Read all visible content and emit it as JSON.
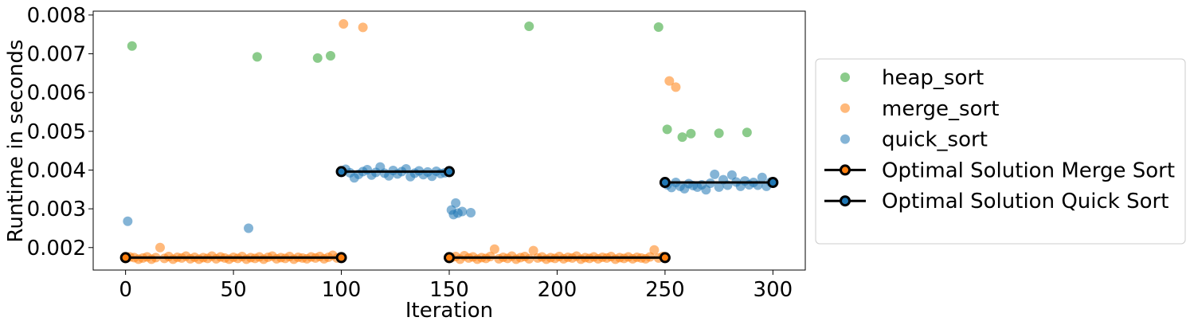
{
  "chart_data": {
    "type": "scatter",
    "title": "",
    "xlabel": "Iteration",
    "ylabel": "Runtime in seconds",
    "xlim": [
      -15,
      315
    ],
    "ylim": [
      0.00142,
      0.0081
    ],
    "x_ticks": [
      0,
      50,
      100,
      150,
      200,
      250,
      300
    ],
    "x_tick_labels": [
      "0",
      "50",
      "100",
      "150",
      "200",
      "250",
      "300"
    ],
    "y_ticks": [
      0.002,
      0.003,
      0.004,
      0.005,
      0.006,
      0.007,
      0.008
    ],
    "y_tick_labels": [
      "0.002",
      "0.003",
      "0.004",
      "0.005",
      "0.006",
      "0.007",
      "0.008"
    ],
    "grid": false,
    "legend_position": "right, outside plot",
    "legend": [
      {
        "label": "heap_sort",
        "kind": "marker",
        "color": "#2ca02c"
      },
      {
        "label": "merge_sort",
        "kind": "marker",
        "color": "#ff7f0e"
      },
      {
        "label": "quick_sort",
        "kind": "marker",
        "color": "#1f77b4"
      },
      {
        "label": "Optimal Solution Merge Sort",
        "kind": "line-marker",
        "color": "#000000",
        "marker_color": "#ff7f0e"
      },
      {
        "label": "Optimal Solution Quick Sort",
        "kind": "line-marker",
        "color": "#000000",
        "marker_color": "#1f77b4"
      }
    ],
    "series": [
      {
        "name": "heap_sort",
        "color": "#2ca02c",
        "points": [
          [
            3,
            0.0072
          ],
          [
            61,
            0.00692
          ],
          [
            89,
            0.00689
          ],
          [
            95,
            0.00695
          ],
          [
            187,
            0.00771
          ],
          [
            247,
            0.00769
          ],
          [
            251,
            0.00505
          ],
          [
            258,
            0.00485
          ],
          [
            262,
            0.00494
          ],
          [
            275,
            0.00495
          ],
          [
            288,
            0.00497
          ]
        ]
      },
      {
        "name": "merge_sort",
        "color": "#ff7f0e",
        "points": [
          [
            0,
            0.00172
          ],
          [
            2,
            0.00176
          ],
          [
            4,
            0.00174
          ],
          [
            6,
            0.0017
          ],
          [
            8,
            0.00173
          ],
          [
            10,
            0.00176
          ],
          [
            12,
            0.0017
          ],
          [
            14,
            0.00174
          ],
          [
            16,
            0.002
          ],
          [
            18,
            0.00172
          ],
          [
            20,
            0.00177
          ],
          [
            22,
            0.0017
          ],
          [
            24,
            0.00175
          ],
          [
            26,
            0.00173
          ],
          [
            28,
            0.00178
          ],
          [
            30,
            0.00171
          ],
          [
            32,
            0.00175
          ],
          [
            34,
            0.0017
          ],
          [
            36,
            0.00174
          ],
          [
            38,
            0.00172
          ],
          [
            40,
            0.00178
          ],
          [
            42,
            0.00171
          ],
          [
            44,
            0.00176
          ],
          [
            46,
            0.00173
          ],
          [
            48,
            0.0017
          ],
          [
            50,
            0.00175
          ],
          [
            52,
            0.00172
          ],
          [
            54,
            0.00177
          ],
          [
            56,
            0.0017
          ],
          [
            58,
            0.00174
          ],
          [
            60,
            0.00172
          ],
          [
            62,
            0.00176
          ],
          [
            64,
            0.0017
          ],
          [
            66,
            0.00175
          ],
          [
            68,
            0.00178
          ],
          [
            70,
            0.00171
          ],
          [
            72,
            0.00174
          ],
          [
            74,
            0.00172
          ],
          [
            76,
            0.00177
          ],
          [
            78,
            0.0017
          ],
          [
            80,
            0.00175
          ],
          [
            82,
            0.00173
          ],
          [
            84,
            0.00171
          ],
          [
            86,
            0.00176
          ],
          [
            88,
            0.00173
          ],
          [
            90,
            0.00177
          ],
          [
            92,
            0.00171
          ],
          [
            94,
            0.00175
          ],
          [
            96,
            0.0018
          ],
          [
            98,
            0.00173
          ],
          [
            101,
            0.00777
          ],
          [
            110,
            0.00768
          ],
          [
            151,
            0.00174
          ],
          [
            153,
            0.00177
          ],
          [
            155,
            0.0017
          ],
          [
            157,
            0.00179
          ],
          [
            159,
            0.00173
          ],
          [
            161,
            0.00176
          ],
          [
            163,
            0.0017
          ],
          [
            165,
            0.00174
          ],
          [
            167,
            0.00172
          ],
          [
            169,
            0.00177
          ],
          [
            171,
            0.00196
          ],
          [
            173,
            0.00171
          ],
          [
            175,
            0.00175
          ],
          [
            177,
            0.00172
          ],
          [
            179,
            0.00178
          ],
          [
            181,
            0.0017
          ],
          [
            183,
            0.00174
          ],
          [
            185,
            0.00177
          ],
          [
            187,
            0.00171
          ],
          [
            189,
            0.00192
          ],
          [
            191,
            0.00173
          ],
          [
            193,
            0.00176
          ],
          [
            195,
            0.0017
          ],
          [
            197,
            0.00174
          ],
          [
            199,
            0.00172
          ],
          [
            201,
            0.00177
          ],
          [
            203,
            0.00171
          ],
          [
            205,
            0.00175
          ],
          [
            207,
            0.00173
          ],
          [
            209,
            0.00178
          ],
          [
            211,
            0.0017
          ],
          [
            213,
            0.00174
          ],
          [
            215,
            0.00172
          ],
          [
            217,
            0.00176
          ],
          [
            219,
            0.00171
          ],
          [
            221,
            0.00175
          ],
          [
            223,
            0.00173
          ],
          [
            225,
            0.00177
          ],
          [
            227,
            0.0017
          ],
          [
            229,
            0.00174
          ],
          [
            231,
            0.00172
          ],
          [
            233,
            0.00176
          ],
          [
            235,
            0.00171
          ],
          [
            237,
            0.00175
          ],
          [
            239,
            0.00173
          ],
          [
            241,
            0.00171
          ],
          [
            243,
            0.00176
          ],
          [
            245,
            0.00194
          ],
          [
            247,
            0.00173
          ],
          [
            249,
            0.00177
          ],
          [
            252,
            0.0063
          ],
          [
            255,
            0.00614
          ]
        ]
      },
      {
        "name": "quick_sort",
        "color": "#1f77b4",
        "points": [
          [
            1,
            0.00268
          ],
          [
            57,
            0.0025
          ],
          [
            100,
            0.00398
          ],
          [
            102,
            0.00402
          ],
          [
            104,
            0.00393
          ],
          [
            106,
            0.0038
          ],
          [
            108,
            0.00389
          ],
          [
            110,
            0.00396
          ],
          [
            112,
            0.00401
          ],
          [
            114,
            0.00387
          ],
          [
            116,
            0.00394
          ],
          [
            118,
            0.00408
          ],
          [
            120,
            0.00392
          ],
          [
            122,
            0.00385
          ],
          [
            124,
            0.00399
          ],
          [
            126,
            0.0039
          ],
          [
            128,
            0.00396
          ],
          [
            130,
            0.00403
          ],
          [
            132,
            0.00383
          ],
          [
            134,
            0.00392
          ],
          [
            136,
            0.00398
          ],
          [
            138,
            0.00388
          ],
          [
            140,
            0.00395
          ],
          [
            142,
            0.00384
          ],
          [
            144,
            0.00397
          ],
          [
            146,
            0.00391
          ],
          [
            148,
            0.00393
          ],
          [
            151,
            0.00297
          ],
          [
            152,
            0.00285
          ],
          [
            153,
            0.00315
          ],
          [
            154,
            0.00289
          ],
          [
            156,
            0.00293
          ],
          [
            160,
            0.0029
          ],
          [
            251,
            0.00362
          ],
          [
            253,
            0.00355
          ],
          [
            255,
            0.00368
          ],
          [
            257,
            0.00358
          ],
          [
            259,
            0.00352
          ],
          [
            261,
            0.00365
          ],
          [
            263,
            0.0036
          ],
          [
            265,
            0.00356
          ],
          [
            267,
            0.00362
          ],
          [
            269,
            0.00349
          ],
          [
            271,
            0.00366
          ],
          [
            273,
            0.00389
          ],
          [
            275,
            0.00356
          ],
          [
            277,
            0.00375
          ],
          [
            279,
            0.00361
          ],
          [
            281,
            0.00387
          ],
          [
            283,
            0.00369
          ],
          [
            285,
            0.00358
          ],
          [
            287,
            0.00372
          ],
          [
            289,
            0.00362
          ],
          [
            291,
            0.00368
          ],
          [
            293,
            0.00361
          ],
          [
            295,
            0.00381
          ],
          [
            297,
            0.00358
          ],
          [
            299,
            0.00369
          ]
        ]
      }
    ],
    "optimal_segments": [
      {
        "series": "Optimal Solution Merge Sort",
        "x": [
          0,
          100
        ],
        "y": 0.00174,
        "marker_color": "#ff7f0e"
      },
      {
        "series": "Optimal Solution Quick Sort",
        "x": [
          100,
          150
        ],
        "y": 0.00396,
        "marker_color": "#1f77b4"
      },
      {
        "series": "Optimal Solution Merge Sort",
        "x": [
          150,
          250
        ],
        "y": 0.00174,
        "marker_color": "#ff7f0e"
      },
      {
        "series": "Optimal Solution Quick Sort",
        "x": [
          250,
          300
        ],
        "y": 0.00368,
        "marker_color": "#1f77b4"
      }
    ]
  }
}
